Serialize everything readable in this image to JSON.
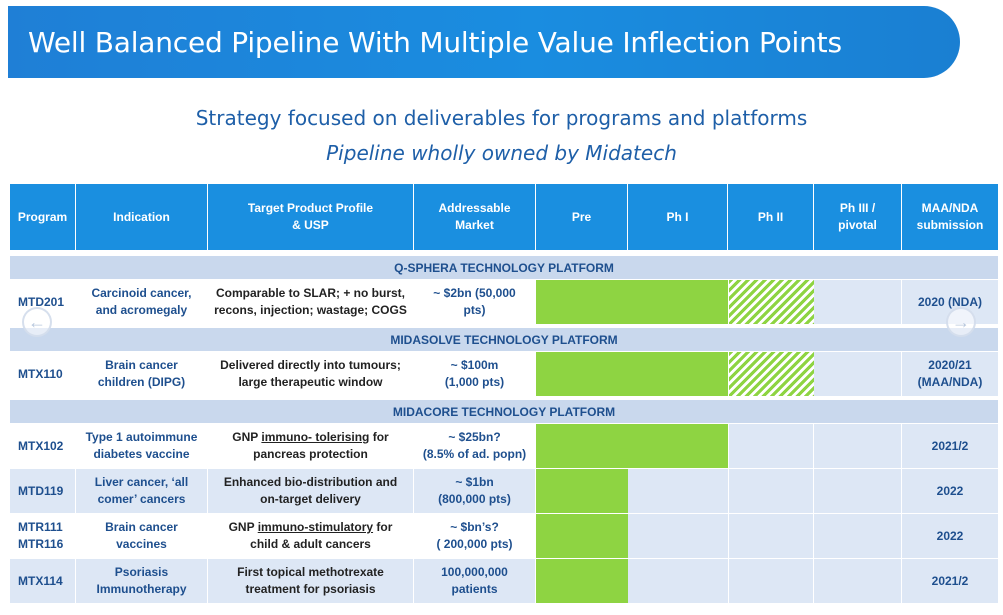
{
  "banner": {
    "title": "Well Balanced Pipeline With Multiple Value Inflection Points"
  },
  "subtitle": {
    "line1": "Strategy focused on deliverables for programs and platforms",
    "line2": "Pipeline wholly owned by Midatech"
  },
  "table": {
    "headers": {
      "program": "Program",
      "indication": "Indication",
      "tpp_line1": "Target Product Profile",
      "tpp_line2": "& USP",
      "market_line1": "Addressable",
      "market_line2": "Market",
      "pre": "Pre",
      "ph1": "Ph I",
      "ph2": "Ph II",
      "ph3_line1": "Ph III /",
      "ph3_line2": "pivotal",
      "maa_line1": "MAA/NDA",
      "maa_line2": "submission"
    },
    "sections": {
      "qsphera": "Q-SPHERA TECHNOLOGY PLATFORM",
      "midasolve": "MIDASOLVE TECHNOLOGY PLATFORM",
      "midacore": "MIDACORE TECHNOLOGY PLATFORM"
    },
    "rows": [
      {
        "program": "MTD201",
        "indication_1": "Carcinoid cancer,",
        "indication_2": "and acromegaly",
        "tpp_1": "Comparable to SLAR; + no burst,",
        "tpp_2": "recons, injection; wastage; COGS",
        "market_1": "~ $2bn (50,000",
        "market_2": "pts)",
        "submission_1": "2020 (NDA)",
        "submission_2": "",
        "stage": "Ph II (in progress)"
      },
      {
        "program": "MTX110",
        "indication_1": "Brain cancer",
        "indication_2": "children (DIPG)",
        "tpp_1": "Delivered directly into tumours;",
        "tpp_2": "large therapeutic window",
        "market_1": "~ $100m",
        "market_2": "(1,000 pts)",
        "submission_1": "2020/21",
        "submission_2": "(MAA/NDA)",
        "stage": "Ph II (in progress)"
      },
      {
        "program": "MTX102",
        "indication_1": "Type 1 autoimmune",
        "indication_2": "diabetes vaccine",
        "tpp_1a": "GNP ",
        "tpp_1b": "immuno- tolerising",
        "tpp_1c": " for",
        "tpp_2": "pancreas protection",
        "market_1": "~ $25bn?",
        "market_2": "(8.5% of ad. popn)",
        "submission_1": "2021/2",
        "submission_2": "",
        "stage": "Ph I"
      },
      {
        "program": "MTD119",
        "indication_1": "Liver cancer, ‘all",
        "indication_2": "comer’ cancers",
        "tpp_1": "Enhanced bio-distribution and",
        "tpp_2": "on-target delivery",
        "market_1": "~ $1bn",
        "market_2": "(800,000 pts)",
        "submission_1": "2022",
        "submission_2": "",
        "stage": "Pre"
      },
      {
        "program_1": "MTR111",
        "program_2": "MTR116",
        "indication_1": "Brain cancer",
        "indication_2": "vaccines",
        "tpp_1a": "GNP ",
        "tpp_1b": "immuno-stimulatory",
        "tpp_1c": " for",
        "tpp_2": "child & adult cancers",
        "market_1": "~ $bn’s?",
        "market_2": "( 200,000 pts)",
        "submission_1": "2022",
        "submission_2": "",
        "stage": "Pre"
      },
      {
        "program": "MTX114",
        "indication_1": "Psoriasis",
        "indication_2": "Immunotherapy",
        "tpp_1": "First topical methotrexate",
        "tpp_2": "treatment for psoriasis",
        "market_1": "100,000,000",
        "market_2": "patients",
        "submission_1": "2021/2",
        "submission_2": "",
        "stage": "Pre"
      }
    ]
  },
  "nav": {
    "prev_icon": "chevron-left-icon",
    "next_icon": "chevron-right-icon",
    "prev_glyph": "←",
    "next_glyph": "→"
  },
  "colors": {
    "banner": "#1a8de0",
    "header": "#1a8fe0",
    "section": "#c9d8ed",
    "progress": "#8ed442",
    "text_blue": "#1e4f8e"
  }
}
